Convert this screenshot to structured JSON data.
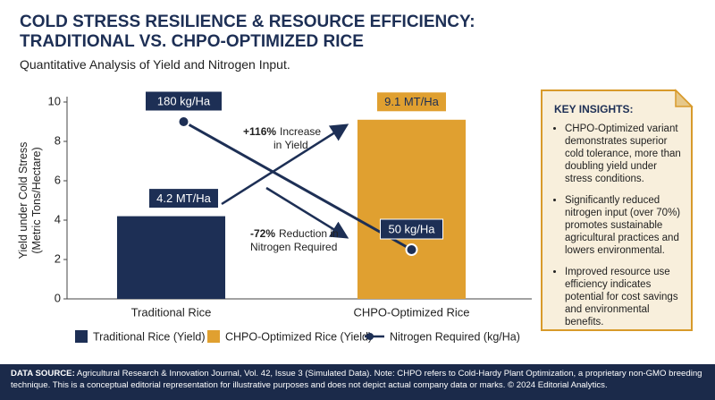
{
  "chart_data": {
    "type": "bar",
    "title": [
      "COLD STRESS RESILIENCE & RESOURCE EFFICIENCY:",
      "TRADITIONAL VS. CHPO-OPTIMIZED RICE"
    ],
    "subtitle": "Quantitative Analysis of Yield and Nitrogen Input.",
    "y_label_lines": [
      "Yield under Cold Stress",
      "(Metric Tons/Hectare)"
    ],
    "categories": [
      "Traditional Rice",
      "CHPO-Optimized Rice"
    ],
    "ylim": [
      0,
      10
    ],
    "yticks": [
      0,
      2,
      4,
      6,
      8,
      10
    ],
    "y2lim": [
      0,
      200
    ],
    "grid": false,
    "series": [
      {
        "name": "Traditional Rice (Yield)",
        "color": "#1d2f55",
        "values": [
          4.2,
          null
        ],
        "value_labels": [
          "4.2 MT/Ha",
          null
        ]
      },
      {
        "name": "CHPO-Optimized Rice (Yield)",
        "color": "#e0a030",
        "values": [
          null,
          9.1
        ],
        "value_labels": [
          null,
          "9.1 MT/Ha"
        ]
      },
      {
        "name": "Nitrogen Required (kg/Ha)",
        "color": "#1d2f55",
        "type": "line",
        "axis": "y2",
        "values": [
          180,
          50
        ],
        "value_labels": [
          "180 kg/Ha",
          "50 kg/Ha"
        ]
      }
    ],
    "annotations": [
      {
        "bold": "+116%",
        "rest": "Increase",
        "line2": "in Yield"
      },
      {
        "bold": "-72%",
        "rest": "Reduction in",
        "line2": "Nitrogen Required"
      }
    ]
  },
  "insights": {
    "title": "KEY INSIGHTS:",
    "items": [
      "CHPO-Optimized variant demonstrates superior cold tolerance, more than doubling yield under stress conditions.",
      "Significantly reduced nitrogen input (over 70%) promotes sustainable agricultural practices and lowers environmental.",
      "Improved resource use efficiency indicates potential for cost savings and environmental benefits."
    ]
  },
  "footer": {
    "source_label": "DATA SOURCE:",
    "source_text": "Agricultural Research & Innovation Journal, Vol. 42, Issue 3 (Simulated Data). Note: CHPO refers to Cold-Hardy Plant Optimization, a proprietary non-GMO breeding technique. This is a conceptual editorial representation for illustrative purposes and does not depict actual company data or marks. © 2024 Editorial Analytics."
  }
}
